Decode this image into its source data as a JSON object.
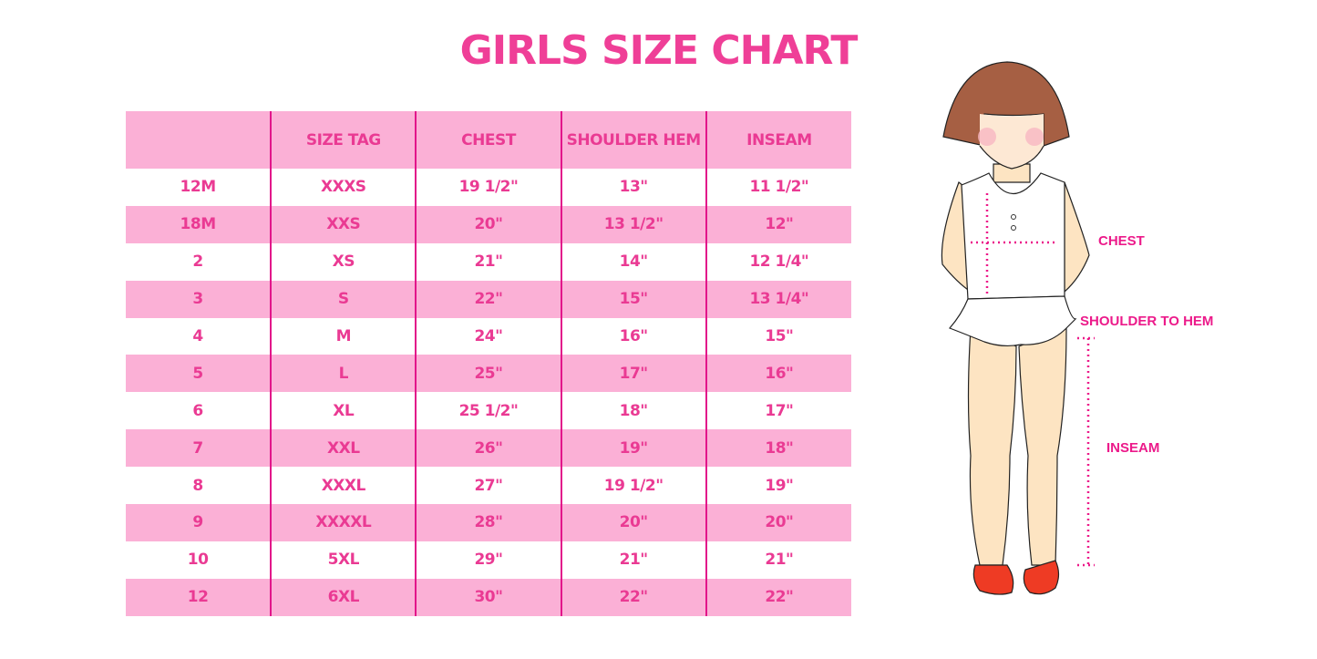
{
  "title": "GIRLS SIZE CHART",
  "table": {
    "headers": [
      "",
      "SIZE TAG",
      "CHEST",
      "SHOULDER HEM",
      "INSEAM"
    ],
    "rows": [
      [
        "12M",
        "XXXS",
        "19 1/2\"",
        "13\"",
        "11 1/2\""
      ],
      [
        "18M",
        "XXS",
        "20\"",
        "13 1/2\"",
        "12\""
      ],
      [
        "2",
        "XS",
        "21\"",
        "14\"",
        "12 1/4\""
      ],
      [
        "3",
        "S",
        "22\"",
        "15\"",
        "13 1/4\""
      ],
      [
        "4",
        "M",
        "24\"",
        "16\"",
        "15\""
      ],
      [
        "5",
        "L",
        "25\"",
        "17\"",
        "16\""
      ],
      [
        "6",
        "XL",
        "25 1/2\"",
        "18\"",
        "17\""
      ],
      [
        "7",
        "XXL",
        "26\"",
        "19\"",
        "18\""
      ],
      [
        "8",
        "XXXL",
        "27\"",
        "19 1/2\"",
        "19\""
      ],
      [
        "9",
        "XXXXL",
        "28\"",
        "20\"",
        "20\""
      ],
      [
        "10",
        "5XL",
        "29\"",
        "21\"",
        "21\""
      ],
      [
        "12",
        "6XL",
        "30\"",
        "22\"",
        "22\""
      ]
    ]
  },
  "figure": {
    "labels": {
      "chest": "CHEST",
      "shoulder_to_hem": "SHOULDER TO HEM",
      "inseam": "INSEAM"
    }
  },
  "colors": {
    "accent": "#ef3f97",
    "row_pink": "#fbb0d6",
    "divider": "#e2158a"
  }
}
